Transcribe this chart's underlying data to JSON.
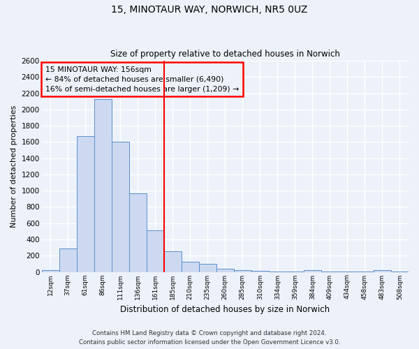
{
  "title": "15, MINOTAUR WAY, NORWICH, NR5 0UZ",
  "subtitle": "Size of property relative to detached houses in Norwich",
  "xlabel": "Distribution of detached houses by size in Norwich",
  "ylabel": "Number of detached properties",
  "bin_labels": [
    "12sqm",
    "37sqm",
    "61sqm",
    "86sqm",
    "111sqm",
    "136sqm",
    "161sqm",
    "185sqm",
    "210sqm",
    "235sqm",
    "260sqm",
    "285sqm",
    "310sqm",
    "334sqm",
    "359sqm",
    "384sqm",
    "409sqm",
    "434sqm",
    "458sqm",
    "483sqm",
    "508sqm"
  ],
  "bar_values": [
    20,
    290,
    1670,
    2130,
    1600,
    970,
    510,
    250,
    125,
    95,
    35,
    20,
    12,
    8,
    5,
    20,
    5,
    5,
    5,
    20,
    5
  ],
  "bar_color": "#ccd9f0",
  "bar_edge_color": "#5b8fcc",
  "vline_color": "red",
  "annotation_text": "15 MINOTAUR WAY: 156sqm\n← 84% of detached houses are smaller (6,490)\n16% of semi-detached houses are larger (1,209) →",
  "annotation_box_color": "red",
  "ylim": [
    0,
    2600
  ],
  "yticks": [
    0,
    200,
    400,
    600,
    800,
    1000,
    1200,
    1400,
    1600,
    1800,
    2000,
    2200,
    2400,
    2600
  ],
  "footer_line1": "Contains HM Land Registry data © Crown copyright and database right 2024.",
  "footer_line2": "Contains public sector information licensed under the Open Government Licence v3.0.",
  "background_color": "#edf2fa",
  "grid_color": "#ffffff"
}
